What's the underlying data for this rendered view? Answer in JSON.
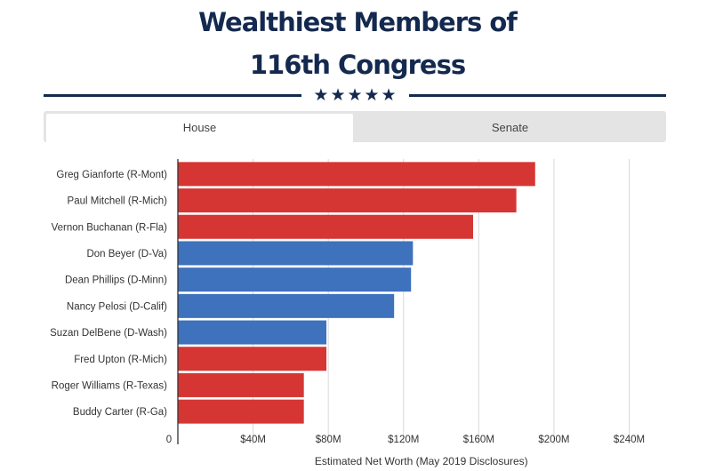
{
  "header": {
    "title_line1": "Wealthiest Members of",
    "title_line2": "116th Congress",
    "stars": "★★★★★"
  },
  "tabs": [
    {
      "label": "House",
      "active": true
    },
    {
      "label": "Senate",
      "active": false
    }
  ],
  "colors": {
    "republican": "#d63633",
    "democrat": "#3e72bd",
    "title": "#14294f"
  },
  "chart_data": {
    "type": "bar",
    "orientation": "horizontal",
    "categories": [
      "Greg Gianforte (R-Mont)",
      "Paul Mitchell (R-Mich)",
      "Vernon Buchanan (R-Fla)",
      "Don Beyer (D-Va)",
      "Dean Phillips (D-Minn)",
      "Nancy Pelosi (D-Calif)",
      "Suzan DelBene (D-Wash)",
      "Fred Upton (R-Mich)",
      "Roger Williams (R-Texas)",
      "Buddy Carter (R-Ga)"
    ],
    "values": [
      190,
      180,
      157,
      125,
      124,
      115,
      79,
      79,
      67,
      67
    ],
    "party": [
      "R",
      "R",
      "R",
      "D",
      "D",
      "D",
      "D",
      "R",
      "R",
      "R"
    ],
    "unit": "M",
    "xlim": [
      0,
      240
    ],
    "xticks": [
      "0",
      "$40M",
      "$80M",
      "$120M",
      "$160M",
      "$200M",
      "$240M"
    ],
    "xtick_values": [
      0,
      40,
      80,
      120,
      160,
      200,
      240
    ],
    "xlabel": "Estimated Net Worth (May 2019 Disclosures)",
    "grid": "vertical"
  }
}
